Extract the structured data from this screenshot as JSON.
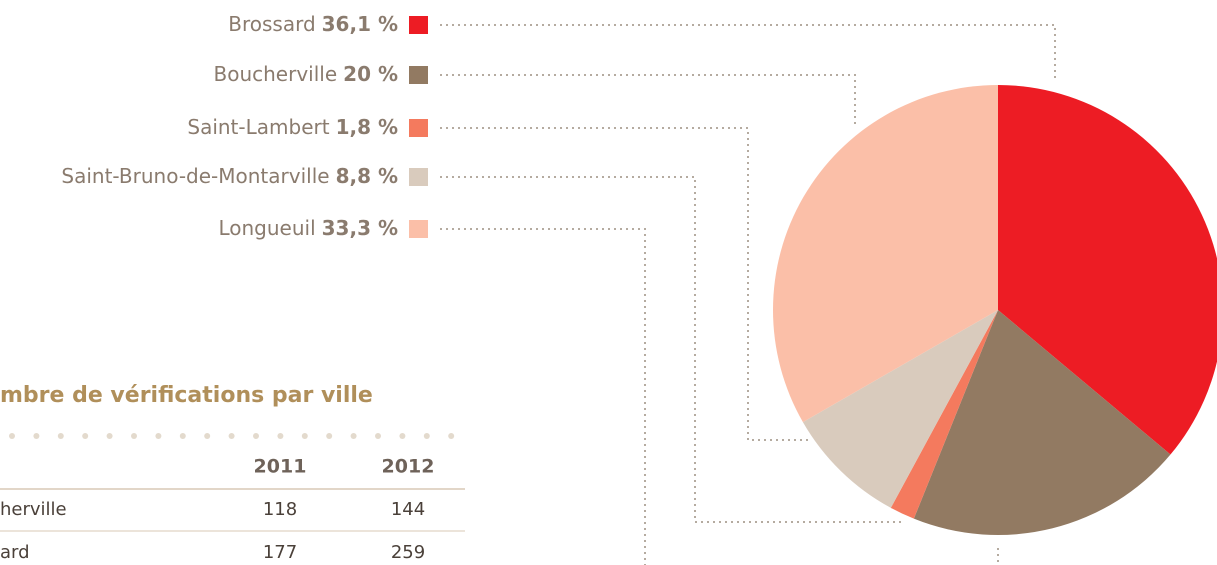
{
  "chart_data": {
    "type": "pie",
    "labels": [
      "Brossard",
      "Boucherville",
      "Saint-Lambert",
      "Saint-Bruno-de-Montarville",
      "Longueuil"
    ],
    "values": [
      36.1,
      20,
      1.8,
      8.8,
      33.3
    ],
    "value_labels": [
      "36,1 %",
      "20 %",
      "1,8 %",
      "8,8 %",
      "33,3 %"
    ],
    "colors": [
      "#ed1c24",
      "#927a62",
      "#f47a5e",
      "#d9cbbd",
      "#fbbfa8"
    ]
  },
  "table": {
    "title": "mbre de vérifications par ville",
    "header": [
      "2011",
      "2012"
    ],
    "rows": [
      [
        "herville",
        "118",
        "144"
      ],
      [
        "ard",
        "177",
        "259"
      ]
    ]
  }
}
